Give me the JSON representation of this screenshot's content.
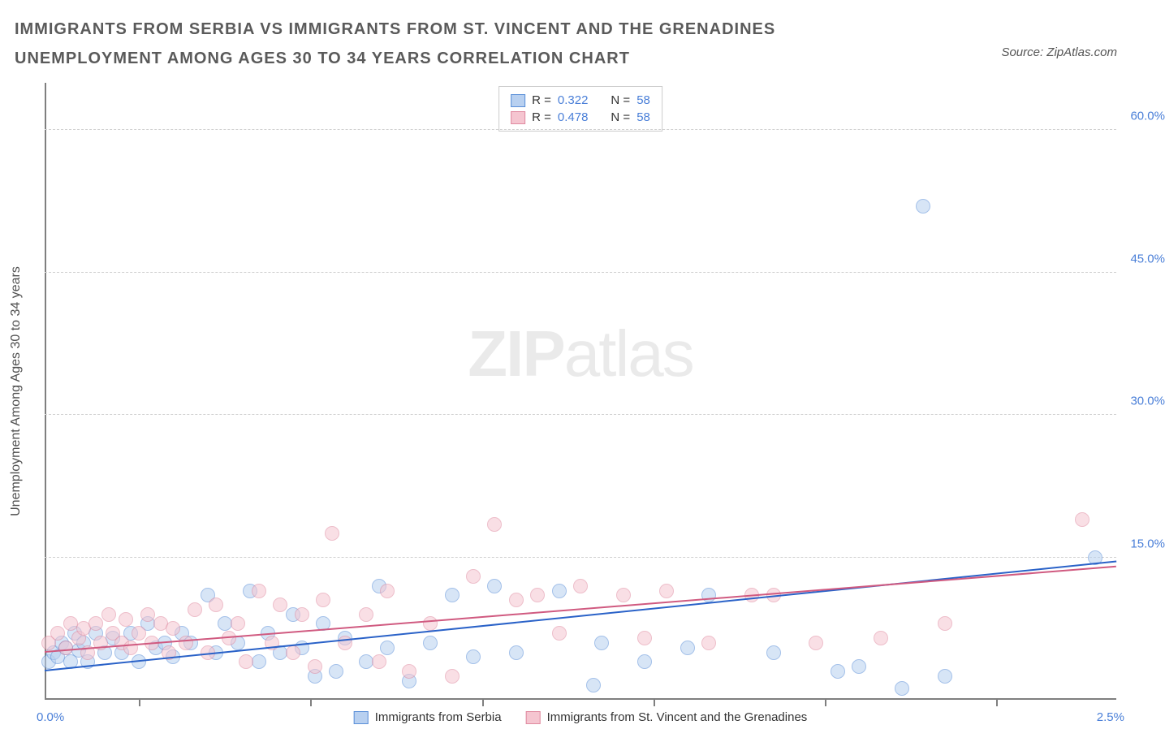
{
  "title": "IMMIGRANTS FROM SERBIA VS IMMIGRANTS FROM ST. VINCENT AND THE GRENADINES UNEMPLOYMENT AMONG AGES 30 TO 34 YEARS CORRELATION CHART",
  "source": "Source: ZipAtlas.com",
  "watermark_bold": "ZIP",
  "watermark_light": "atlas",
  "chart": {
    "type": "scatter",
    "yaxis_title": "Unemployment Among Ages 30 to 34 years",
    "xlim": [
      0.0,
      2.5
    ],
    "ylim": [
      0.0,
      65.0
    ],
    "xtick_label_min": "0.0%",
    "xtick_label_max": "2.5%",
    "xtick_positions": [
      0.22,
      0.62,
      1.02,
      1.42,
      1.82,
      2.22
    ],
    "y_gridlines": [
      15.0,
      30.0,
      45.0,
      60.0
    ],
    "y_gridline_labels": [
      "15.0%",
      "30.0%",
      "45.0%",
      "60.0%"
    ],
    "grid_color": "#d0d0d0",
    "axis_color": "#7f7f7f",
    "tick_label_color": "#4a7fd8",
    "background_color": "#ffffff",
    "point_radius": 9,
    "point_opacity": 0.55,
    "series": [
      {
        "name": "Immigrants from Serbia",
        "fill": "#b8d0f0",
        "stroke": "#5a8fd8",
        "legend_label": "Immigrants from Serbia",
        "stats": {
          "R_label": "R =",
          "R": "0.322",
          "N_label": "N =",
          "N": "58"
        },
        "trend": {
          "x1": 0.0,
          "y1": 3.0,
          "x2": 2.5,
          "y2": 14.5,
          "color": "#2a62c8",
          "width": 2
        },
        "points": [
          [
            0.01,
            4.0
          ],
          [
            0.02,
            5.0
          ],
          [
            0.03,
            4.5
          ],
          [
            0.04,
            6.0
          ],
          [
            0.05,
            5.5
          ],
          [
            0.06,
            4.0
          ],
          [
            0.07,
            7.0
          ],
          [
            0.08,
            5.2
          ],
          [
            0.09,
            6.0
          ],
          [
            0.1,
            4.0
          ],
          [
            0.12,
            7.0
          ],
          [
            0.14,
            5.0
          ],
          [
            0.16,
            6.5
          ],
          [
            0.18,
            5.0
          ],
          [
            0.2,
            7.0
          ],
          [
            0.22,
            4.0
          ],
          [
            0.24,
            8.0
          ],
          [
            0.26,
            5.5
          ],
          [
            0.28,
            6.0
          ],
          [
            0.3,
            4.5
          ],
          [
            0.32,
            7.0
          ],
          [
            0.34,
            6.0
          ],
          [
            0.38,
            11.0
          ],
          [
            0.4,
            5.0
          ],
          [
            0.42,
            8.0
          ],
          [
            0.45,
            6.0
          ],
          [
            0.48,
            11.5
          ],
          [
            0.5,
            4.0
          ],
          [
            0.52,
            7.0
          ],
          [
            0.55,
            5.0
          ],
          [
            0.58,
            9.0
          ],
          [
            0.6,
            5.5
          ],
          [
            0.63,
            2.5
          ],
          [
            0.65,
            8.0
          ],
          [
            0.68,
            3.0
          ],
          [
            0.7,
            6.5
          ],
          [
            0.75,
            4.0
          ],
          [
            0.78,
            12.0
          ],
          [
            0.8,
            5.5
          ],
          [
            0.85,
            2.0
          ],
          [
            0.9,
            6.0
          ],
          [
            0.95,
            11.0
          ],
          [
            1.0,
            4.5
          ],
          [
            1.05,
            12.0
          ],
          [
            1.1,
            5.0
          ],
          [
            1.2,
            11.5
          ],
          [
            1.28,
            1.5
          ],
          [
            1.3,
            6.0
          ],
          [
            1.4,
            4.0
          ],
          [
            1.5,
            5.5
          ],
          [
            1.55,
            11.0
          ],
          [
            1.7,
            5.0
          ],
          [
            1.85,
            3.0
          ],
          [
            1.9,
            3.5
          ],
          [
            2.0,
            1.2
          ],
          [
            2.05,
            52.0
          ],
          [
            2.1,
            2.5
          ],
          [
            2.45,
            15.0
          ]
        ]
      },
      {
        "name": "Immigrants from St. Vincent and the Grenadines",
        "fill": "#f5c5d0",
        "stroke": "#e08aa0",
        "legend_label": "Immigrants from St. Vincent and the Grenadines",
        "stats": {
          "R_label": "R =",
          "R": "0.478",
          "N_label": "N =",
          "N": "58"
        },
        "trend": {
          "x1": 0.0,
          "y1": 5.0,
          "x2": 2.5,
          "y2": 14.0,
          "color": "#d05a80",
          "width": 2
        },
        "points": [
          [
            0.01,
            6.0
          ],
          [
            0.03,
            7.0
          ],
          [
            0.05,
            5.5
          ],
          [
            0.06,
            8.0
          ],
          [
            0.08,
            6.5
          ],
          [
            0.09,
            7.5
          ],
          [
            0.1,
            5.0
          ],
          [
            0.12,
            8.0
          ],
          [
            0.13,
            6.0
          ],
          [
            0.15,
            9.0
          ],
          [
            0.16,
            7.0
          ],
          [
            0.18,
            6.0
          ],
          [
            0.19,
            8.5
          ],
          [
            0.2,
            5.5
          ],
          [
            0.22,
            7.0
          ],
          [
            0.24,
            9.0
          ],
          [
            0.25,
            6.0
          ],
          [
            0.27,
            8.0
          ],
          [
            0.29,
            5.0
          ],
          [
            0.3,
            7.5
          ],
          [
            0.33,
            6.0
          ],
          [
            0.35,
            9.5
          ],
          [
            0.38,
            5.0
          ],
          [
            0.4,
            10.0
          ],
          [
            0.43,
            6.5
          ],
          [
            0.45,
            8.0
          ],
          [
            0.47,
            4.0
          ],
          [
            0.5,
            11.5
          ],
          [
            0.53,
            6.0
          ],
          [
            0.55,
            10.0
          ],
          [
            0.58,
            5.0
          ],
          [
            0.6,
            9.0
          ],
          [
            0.63,
            3.5
          ],
          [
            0.65,
            10.5
          ],
          [
            0.67,
            17.5
          ],
          [
            0.7,
            6.0
          ],
          [
            0.75,
            9.0
          ],
          [
            0.78,
            4.0
          ],
          [
            0.8,
            11.5
          ],
          [
            0.85,
            3.0
          ],
          [
            0.9,
            8.0
          ],
          [
            0.95,
            2.5
          ],
          [
            1.0,
            13.0
          ],
          [
            1.05,
            18.5
          ],
          [
            1.1,
            10.5
          ],
          [
            1.15,
            11.0
          ],
          [
            1.2,
            7.0
          ],
          [
            1.25,
            12.0
          ],
          [
            1.35,
            11.0
          ],
          [
            1.4,
            6.5
          ],
          [
            1.45,
            11.5
          ],
          [
            1.55,
            6.0
          ],
          [
            1.65,
            11.0
          ],
          [
            1.7,
            11.0
          ],
          [
            1.8,
            6.0
          ],
          [
            1.95,
            6.5
          ],
          [
            2.1,
            8.0
          ],
          [
            2.42,
            19.0
          ]
        ]
      }
    ]
  }
}
